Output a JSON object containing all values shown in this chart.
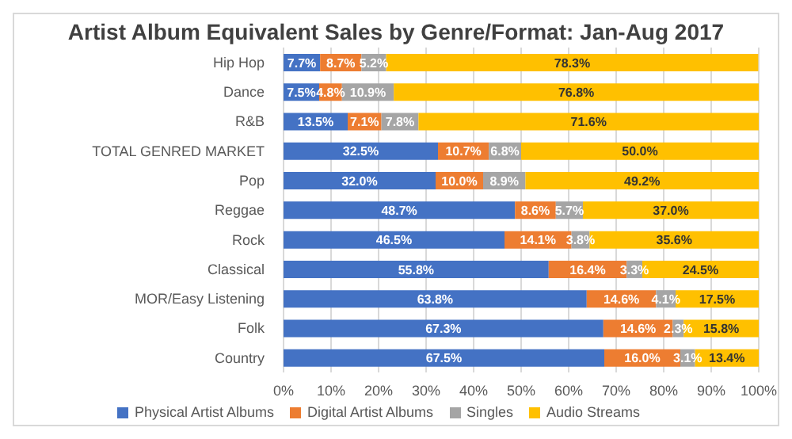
{
  "chart_data": {
    "type": "bar",
    "orientation": "horizontal",
    "stacked": true,
    "title": "Artist Album Equivalent Sales by Genre/Format: Jan-Aug 2017",
    "categories": [
      "Hip Hop",
      "Dance",
      "R&B",
      "TOTAL GENRED MARKET",
      "Pop",
      "Reggae",
      "Rock",
      "Classical",
      "MOR/Easy Listening",
      "Folk",
      "Country"
    ],
    "series": [
      {
        "name": "Physical Artist Albums",
        "color": "#4472c4",
        "values": [
          7.7,
          7.5,
          13.5,
          32.5,
          32.0,
          48.7,
          46.5,
          55.8,
          63.8,
          67.3,
          67.5
        ],
        "value_labels": [
          "7.7%",
          "7.5%",
          "13.5%",
          "32.5%",
          "32.0%",
          "48.7%",
          "46.5%",
          "55.8%",
          "63.8%",
          "67.3%",
          "67.5%"
        ]
      },
      {
        "name": "Digital Artist Albums",
        "color": "#ed7d31",
        "values": [
          8.7,
          4.8,
          7.1,
          10.7,
          10.0,
          8.6,
          14.1,
          16.4,
          14.6,
          14.6,
          16.0
        ],
        "value_labels": [
          "8.7%",
          "4.8%",
          "7.1%",
          "10.7%",
          "10.0%",
          "8.6%",
          "14.1%",
          "16.4%",
          "14.6%",
          "14.6%",
          "16.0%"
        ]
      },
      {
        "name": "Singles",
        "color": "#a5a5a5",
        "values": [
          5.2,
          10.9,
          7.8,
          6.8,
          8.9,
          5.7,
          3.8,
          3.3,
          4.1,
          2.3,
          3.1
        ],
        "value_labels": [
          "5.2%",
          "10.9%",
          "7.8%",
          "6.8%",
          "8.9%",
          "5.7%",
          "3.8%",
          "3.3%",
          "4.1%",
          "2.3%",
          "3.1%"
        ]
      },
      {
        "name": "Audio Streams",
        "color": "#ffc000",
        "values": [
          78.3,
          76.8,
          71.6,
          50.0,
          49.2,
          37.0,
          35.6,
          24.5,
          17.5,
          15.8,
          13.4
        ],
        "value_labels": [
          "78.3%",
          "76.8%",
          "71.6%",
          "50.0%",
          "49.2%",
          "37.0%",
          "35.6%",
          "24.5%",
          "17.5%",
          "15.8%",
          "13.4%"
        ]
      }
    ],
    "xlim": [
      0,
      100
    ],
    "xticks": [
      {
        "value": 0,
        "label": "0%"
      },
      {
        "value": 10,
        "label": "10%"
      },
      {
        "value": 20,
        "label": "20%"
      },
      {
        "value": 30,
        "label": "30%"
      },
      {
        "value": 40,
        "label": "40%"
      },
      {
        "value": 50,
        "label": "50%"
      },
      {
        "value": 60,
        "label": "60%"
      },
      {
        "value": 70,
        "label": "70%"
      },
      {
        "value": 80,
        "label": "80%"
      },
      {
        "value": 90,
        "label": "90%"
      },
      {
        "value": 100,
        "label": "100%"
      }
    ],
    "grid": "x",
    "legend": "bottom"
  }
}
